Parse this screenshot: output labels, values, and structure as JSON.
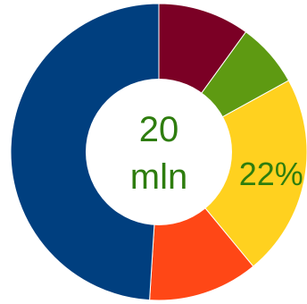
{
  "chart_data": {
    "type": "pie",
    "donut": true,
    "center_label": [
      "20",
      "mln"
    ],
    "slices": [
      {
        "value": 10,
        "color": "#7b0025",
        "label": ""
      },
      {
        "value": 7,
        "color": "#5e9a12",
        "label": ""
      },
      {
        "value": 22,
        "color": "#ffd11f",
        "label": "22%"
      },
      {
        "value": 12,
        "color": "#ff4716",
        "label": ""
      },
      {
        "value": 49,
        "color": "#003f7f",
        "label": ""
      }
    ]
  }
}
